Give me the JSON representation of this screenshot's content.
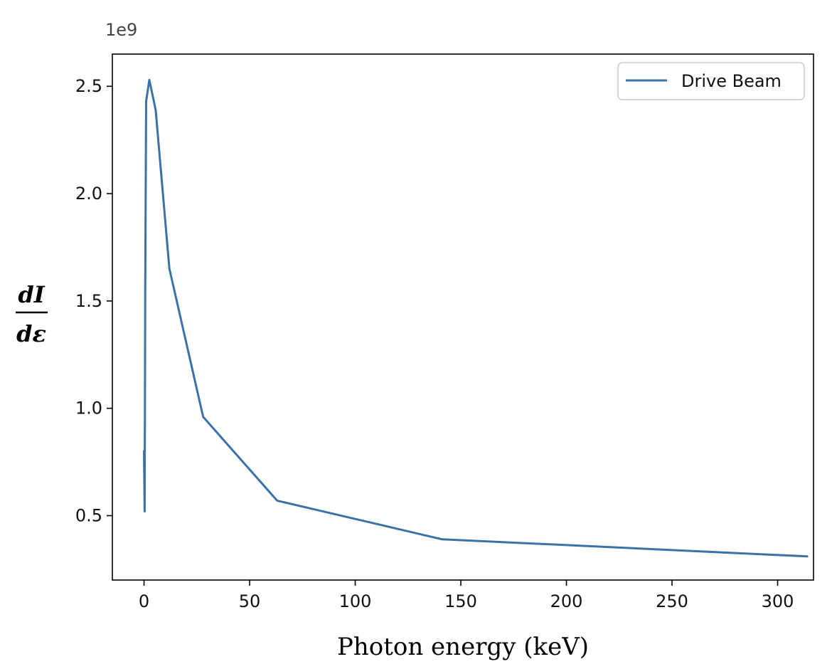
{
  "chart_data": {
    "type": "line",
    "xlabel": "Photon energy (keV)",
    "ylabel_numerator": "dI",
    "ylabel_denominator": "dε",
    "y_offset_text": "1e9",
    "xlim": [
      -15,
      317
    ],
    "ylim": [
      0.2,
      2.65
    ],
    "x_ticks": [
      0,
      50,
      100,
      150,
      200,
      250,
      300
    ],
    "x_tick_labels": [
      "0",
      "50",
      "100",
      "150",
      "200",
      "250",
      "300"
    ],
    "y_ticks": [
      0.5,
      1.0,
      1.5,
      2.0,
      2.5
    ],
    "y_tick_labels": [
      "0.5",
      "1.0",
      "1.5",
      "2.0",
      "2.5"
    ],
    "grid": false,
    "legend_position": "top-right",
    "series": [
      {
        "name": "Drive Beam",
        "color": "#3a72a8",
        "x": [
          0.0,
          0.3,
          0.6,
          1.0,
          2.5,
          5.5,
          12.0,
          28.0,
          63.0,
          141.0,
          314.0
        ],
        "y": [
          0.8,
          0.52,
          1.6,
          2.43,
          2.53,
          2.39,
          1.65,
          0.96,
          0.57,
          0.39,
          0.31
        ]
      }
    ]
  }
}
